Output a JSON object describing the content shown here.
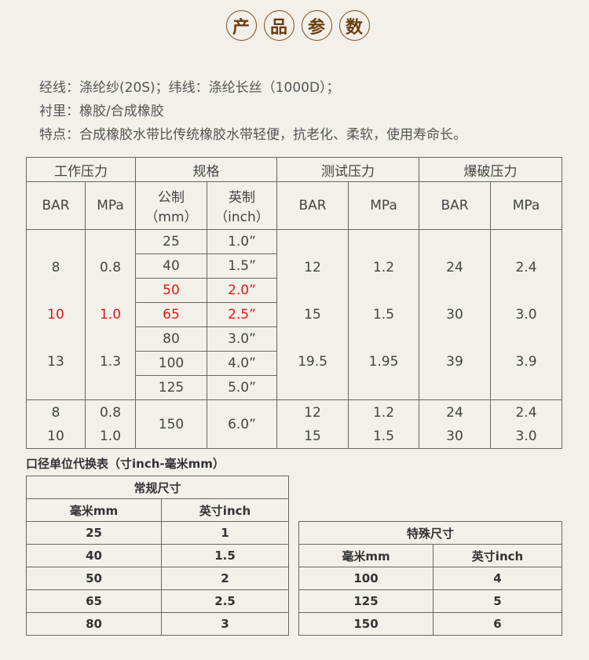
{
  "title": [
    "产",
    "品",
    "参",
    "数"
  ],
  "desc": [
    "经线：涤纶纱(20S)；纬线：涤纶长丝（1000D）；",
    "衬里：橡胶/合成橡胶",
    "特点：合成橡胶水带比传统橡胶水带轻便，抗老化、柔软，使用寿命长。"
  ],
  "table": {
    "groups": [
      "工作压力",
      "规格",
      "测试压力",
      "爆破压力"
    ],
    "sub": [
      "BAR",
      "MPa",
      "公制",
      "（mm）",
      "英制",
      "（inch）",
      "BAR",
      "MPa",
      "BAR",
      "MPa"
    ],
    "work": [
      {
        "bar": "8",
        "mpa": "0.8"
      },
      {
        "bar": "10",
        "mpa": "1.0"
      },
      {
        "bar": "13",
        "mpa": "1.3"
      }
    ],
    "sizes": [
      {
        "mm": "25",
        "inch": "1.0”"
      },
      {
        "mm": "40",
        "inch": "1.5”"
      },
      {
        "mm": "50",
        "inch": "2.0”"
      },
      {
        "mm": "65",
        "inch": "2.5”"
      },
      {
        "mm": "80",
        "inch": "3.0”"
      },
      {
        "mm": "100",
        "inch": "4.0”"
      },
      {
        "mm": "125",
        "inch": "5.0”"
      }
    ],
    "test": [
      {
        "bar": "12",
        "mpa": "1.2"
      },
      {
        "bar": "15",
        "mpa": "1.5"
      },
      {
        "bar": "19.5",
        "mpa": "1.95"
      }
    ],
    "burst": [
      {
        "bar": "24",
        "mpa": "2.4"
      },
      {
        "bar": "30",
        "mpa": "3.0"
      },
      {
        "bar": "39",
        "mpa": "3.9"
      }
    ],
    "last": {
      "bar": [
        "8",
        "10"
      ],
      "mpa": [
        "0.8",
        "1.0"
      ],
      "mm": "150",
      "inch": "6.0”",
      "tbar": [
        "12",
        "15"
      ],
      "tmpa": [
        "1.2",
        "1.5"
      ],
      "bbar": [
        "24",
        "30"
      ],
      "bmpa": [
        "2.4",
        "3.0"
      ]
    }
  },
  "conv_title": "口径单位代换表（寸inch-毫米mm）",
  "regular": {
    "title": "常规尺寸",
    "headers": [
      "毫米mm",
      "英寸inch"
    ],
    "rows": [
      [
        "25",
        "1"
      ],
      [
        "40",
        "1.5"
      ],
      [
        "50",
        "2"
      ],
      [
        "65",
        "2.5"
      ],
      [
        "80",
        "3"
      ]
    ]
  },
  "special": {
    "title": "特殊尺寸",
    "headers": [
      "毫米mm",
      "英寸inch"
    ],
    "rows": [
      [
        "100",
        "4"
      ],
      [
        "125",
        "5"
      ],
      [
        "150",
        "6"
      ]
    ]
  },
  "colors": {
    "highlight": "#e01818",
    "title": "#6b3e12"
  }
}
